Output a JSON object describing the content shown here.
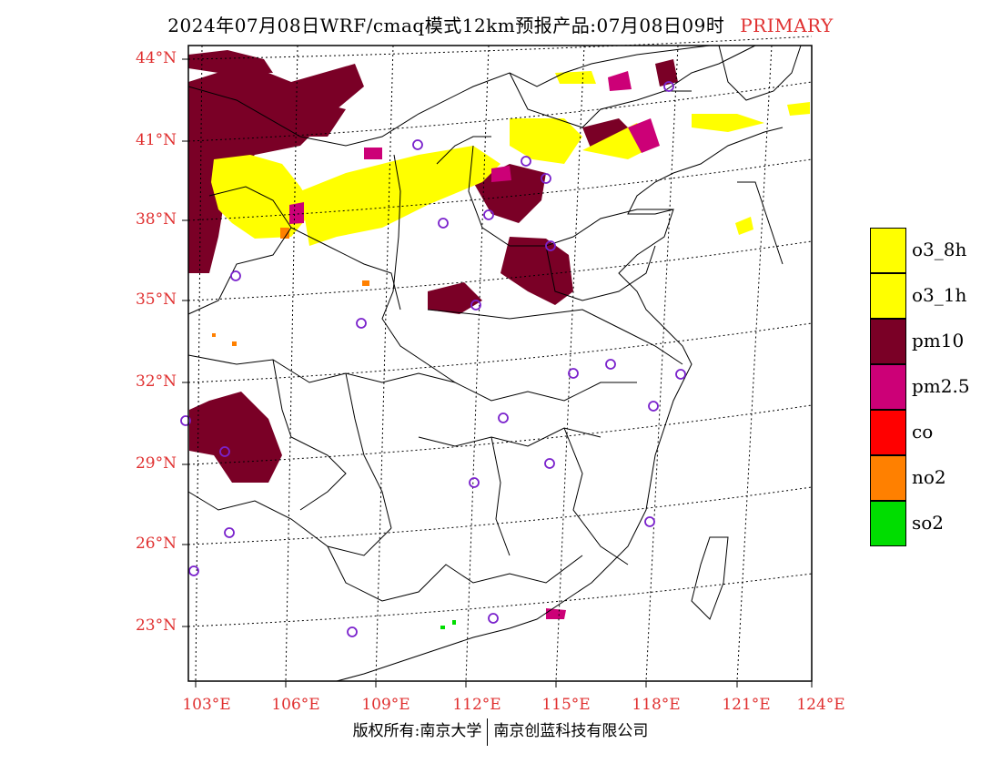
{
  "title": {
    "text": "2024年07月08日WRF/cmaq模式12km预报产品:07月08日09时",
    "tag": "PRIMARY"
  },
  "map": {
    "lat_labels": [
      "44°N",
      "41°N",
      "38°N",
      "35°N",
      "32°N",
      "29°N",
      "26°N",
      "23°N"
    ],
    "lon_labels": [
      "103°E",
      "106°E",
      "109°E",
      "112°E",
      "115°E",
      "118°E",
      "121°E",
      "124°E"
    ],
    "label_color": "#e03030"
  },
  "legend": [
    {
      "label": "o3_8h",
      "color": "#ffff00"
    },
    {
      "label": "o3_1h",
      "color": "#ffff00"
    },
    {
      "label": "pm10",
      "color": "#7a0026"
    },
    {
      "label": "pm2.5",
      "color": "#cc0077"
    },
    {
      "label": "co",
      "color": "#ff0000"
    },
    {
      "label": "no2",
      "color": "#ff8000"
    },
    {
      "label": "so2",
      "color": "#00dd00"
    }
  ],
  "footer": {
    "left": "版权所有:南京大学",
    "right": "南京创蓝科技有限公司"
  }
}
